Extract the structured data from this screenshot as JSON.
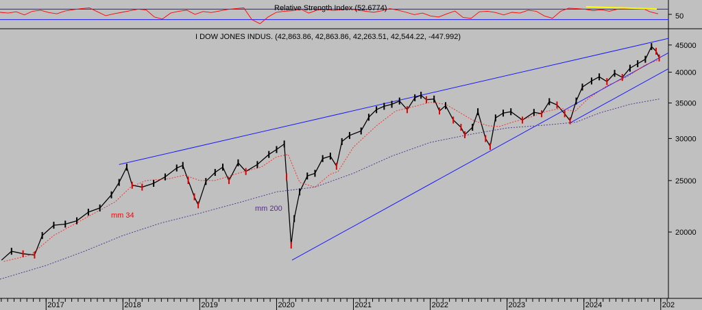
{
  "rsi_panel": {
    "title": "Relative Strength Index (52.6774)",
    "y_tick": "50",
    "colors": {
      "line": "#ff0000",
      "band": "#0000ff",
      "trend": "#ffff00"
    }
  },
  "main_panel": {
    "title": "I DOW JONES INDUS. (42,863.86, 42,863.86, 42,263.51, 42,544.22, -447.992)",
    "annotations": {
      "ma34": "mm 34",
      "ma200": "mm 200"
    }
  },
  "chart_data": {
    "type": "line",
    "scale": "log",
    "ylim": [
      15000,
      48000
    ],
    "y_ticks": [
      "45000",
      "40000",
      "35000",
      "30000",
      "25000",
      "20000"
    ],
    "x_ticks": [
      "2017",
      "2018",
      "2019",
      "2020",
      "2021",
      "2022",
      "2023",
      "2024",
      "202"
    ],
    "xlim": [
      2016.4,
      2025.1
    ],
    "series": [
      {
        "name": "DJIA",
        "points": [
          [
            2016.42,
            17700
          ],
          [
            2016.55,
            18400
          ],
          [
            2016.7,
            18200
          ],
          [
            2016.85,
            18100
          ],
          [
            2016.95,
            19700
          ],
          [
            2017.1,
            20600
          ],
          [
            2017.25,
            20700
          ],
          [
            2017.4,
            21000
          ],
          [
            2017.55,
            21800
          ],
          [
            2017.7,
            22200
          ],
          [
            2017.85,
            23500
          ],
          [
            2017.95,
            24800
          ],
          [
            2018.05,
            26500
          ],
          [
            2018.12,
            24500
          ],
          [
            2018.25,
            24300
          ],
          [
            2018.4,
            24700
          ],
          [
            2018.55,
            25400
          ],
          [
            2018.7,
            26400
          ],
          [
            2018.78,
            26700
          ],
          [
            2018.85,
            25000
          ],
          [
            2018.93,
            23300
          ],
          [
            2018.98,
            22500
          ],
          [
            2019.08,
            24900
          ],
          [
            2019.2,
            25900
          ],
          [
            2019.3,
            26500
          ],
          [
            2019.38,
            25000
          ],
          [
            2019.5,
            27000
          ],
          [
            2019.6,
            26000
          ],
          [
            2019.75,
            26800
          ],
          [
            2019.9,
            28000
          ],
          [
            2020.0,
            28600
          ],
          [
            2020.1,
            29300
          ],
          [
            2020.13,
            25400
          ],
          [
            2020.19,
            18900
          ],
          [
            2020.23,
            21200
          ],
          [
            2020.3,
            23800
          ],
          [
            2020.4,
            25500
          ],
          [
            2020.5,
            25800
          ],
          [
            2020.6,
            27500
          ],
          [
            2020.7,
            27800
          ],
          [
            2020.78,
            26600
          ],
          [
            2020.85,
            29600
          ],
          [
            2020.95,
            30400
          ],
          [
            2021.1,
            31000
          ],
          [
            2021.2,
            32900
          ],
          [
            2021.3,
            34000
          ],
          [
            2021.4,
            34500
          ],
          [
            2021.5,
            34800
          ],
          [
            2021.6,
            35300
          ],
          [
            2021.7,
            34000
          ],
          [
            2021.8,
            35800
          ],
          [
            2021.88,
            36200
          ],
          [
            2021.95,
            35500
          ],
          [
            2022.05,
            35600
          ],
          [
            2022.12,
            33800
          ],
          [
            2022.2,
            34600
          ],
          [
            2022.3,
            32500
          ],
          [
            2022.4,
            31500
          ],
          [
            2022.45,
            30500
          ],
          [
            2022.55,
            31500
          ],
          [
            2022.62,
            33700
          ],
          [
            2022.72,
            30000
          ],
          [
            2022.78,
            29000
          ],
          [
            2022.85,
            32800
          ],
          [
            2022.95,
            33500
          ],
          [
            2023.05,
            33700
          ],
          [
            2023.2,
            32500
          ],
          [
            2023.35,
            33600
          ],
          [
            2023.45,
            33400
          ],
          [
            2023.55,
            35200
          ],
          [
            2023.65,
            34700
          ],
          [
            2023.75,
            33400
          ],
          [
            2023.82,
            32400
          ],
          [
            2023.9,
            35300
          ],
          [
            2023.98,
            37500
          ],
          [
            2024.1,
            38500
          ],
          [
            2024.2,
            39200
          ],
          [
            2024.3,
            38400
          ],
          [
            2024.4,
            39800
          ],
          [
            2024.5,
            39100
          ],
          [
            2024.6,
            40700
          ],
          [
            2024.7,
            41500
          ],
          [
            2024.8,
            42300
          ],
          [
            2024.88,
            44700
          ],
          [
            2024.94,
            43800
          ],
          [
            2024.98,
            42550
          ]
        ]
      },
      {
        "name": "mm 34",
        "points": [
          [
            2016.45,
            17600
          ],
          [
            2016.8,
            18100
          ],
          [
            2017.1,
            19700
          ],
          [
            2017.5,
            21200
          ],
          [
            2017.9,
            22800
          ],
          [
            2018.1,
            24300
          ],
          [
            2018.3,
            25000
          ],
          [
            2018.6,
            25200
          ],
          [
            2018.8,
            25600
          ],
          [
            2019.0,
            25000
          ],
          [
            2019.2,
            25000
          ],
          [
            2019.5,
            25800
          ],
          [
            2019.8,
            26500
          ],
          [
            2020.0,
            27700
          ],
          [
            2020.15,
            28000
          ],
          [
            2020.3,
            24800
          ],
          [
            2020.5,
            24300
          ],
          [
            2020.7,
            25700
          ],
          [
            2020.8,
            26000
          ],
          [
            2021.0,
            28900
          ],
          [
            2021.3,
            31700
          ],
          [
            2021.55,
            33800
          ],
          [
            2021.8,
            34500
          ],
          [
            2022.0,
            35100
          ],
          [
            2022.2,
            34800
          ],
          [
            2022.35,
            33800
          ],
          [
            2022.55,
            32500
          ],
          [
            2022.75,
            31700
          ],
          [
            2022.9,
            31600
          ],
          [
            2023.1,
            32300
          ],
          [
            2023.3,
            32900
          ],
          [
            2023.5,
            33700
          ],
          [
            2023.7,
            34200
          ],
          [
            2023.88,
            33700
          ],
          [
            2024.05,
            35600
          ],
          [
            2024.3,
            37700
          ],
          [
            2024.55,
            39100
          ],
          [
            2024.8,
            41300
          ],
          [
            2024.98,
            42200
          ]
        ]
      },
      {
        "name": "mm 200",
        "points": [
          [
            2016.4,
            16300
          ],
          [
            2017.0,
            17300
          ],
          [
            2017.5,
            18400
          ],
          [
            2018.0,
            19700
          ],
          [
            2018.5,
            20800
          ],
          [
            2019.0,
            21700
          ],
          [
            2019.5,
            22700
          ],
          [
            2020.0,
            23800
          ],
          [
            2020.5,
            24300
          ],
          [
            2021.0,
            25800
          ],
          [
            2021.5,
            27800
          ],
          [
            2022.0,
            29500
          ],
          [
            2022.5,
            30500
          ],
          [
            2023.0,
            31400
          ],
          [
            2023.5,
            31800
          ],
          [
            2023.9,
            32200
          ],
          [
            2024.2,
            33500
          ],
          [
            2024.6,
            34800
          ],
          [
            2024.98,
            35600
          ]
        ]
      }
    ],
    "trendlines": [
      {
        "name": "upper",
        "from": [
          2017.95,
          26800
        ],
        "to": [
          2025.1,
          46300
        ]
      },
      {
        "name": "lower-long",
        "from": [
          2020.2,
          17700
        ],
        "to": [
          2025.1,
          43500
        ]
      },
      {
        "name": "lower-short",
        "from": [
          2023.82,
          32100
        ],
        "to": [
          2025.1,
          40600
        ]
      }
    ],
    "rsi": {
      "ylim": [
        0,
        100
      ],
      "upper_band": 70,
      "lower_band": 30,
      "label": 50,
      "last": 52.68,
      "values": [
        58,
        55,
        60,
        48,
        62,
        66,
        57,
        52,
        63,
        68,
        72,
        75,
        60,
        45,
        52,
        58,
        64,
        70,
        67,
        40,
        32,
        55,
        62,
        66,
        50,
        61,
        57,
        63,
        69,
        72,
        75,
        30,
        14,
        40,
        58,
        62,
        64,
        70,
        55,
        66,
        70,
        65,
        68,
        71,
        66,
        62,
        58,
        64,
        72,
        66,
        58,
        49,
        55,
        44,
        40,
        52,
        63,
        38,
        35,
        60,
        62,
        57,
        48,
        58,
        55,
        66,
        62,
        44,
        35,
        62,
        74,
        72,
        70,
        64,
        68,
        62,
        70,
        71,
        70,
        74,
        60,
        52
      ]
    }
  }
}
